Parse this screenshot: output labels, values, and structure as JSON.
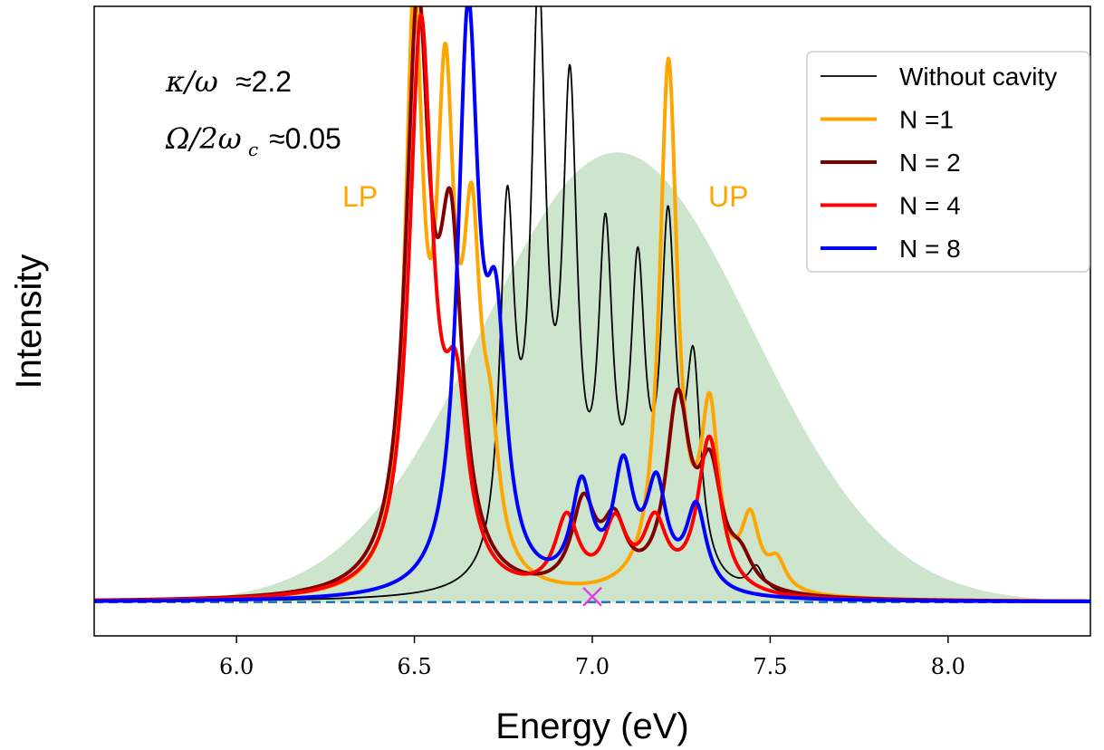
{
  "chart_data": {
    "type": "line",
    "title": "",
    "xlabel": "Energy (eV)",
    "ylabel": "Intensity",
    "xlim": [
      5.6,
      8.4
    ],
    "ylim": [
      -0.06,
      1.06
    ],
    "xticks": [
      6.0,
      6.5,
      7.0,
      7.5,
      8.0
    ],
    "xtick_labels": [
      "6.0",
      "6.5",
      "7.0",
      "7.5",
      "8.0"
    ],
    "grid": false,
    "legend_position": "top-right",
    "colors": {
      "without_cavity": "#000000",
      "n1": "#ffa500",
      "n2": "#800000",
      "n4": "#ff0000",
      "n8": "#0000ff",
      "envelope": "#cde4cd",
      "baseline": "#1f77b4",
      "marker": "#e040e0"
    },
    "annotations": {
      "kappa_symbol": "κ/ω",
      "kappa_value": "≈2.2",
      "omega_symbol": "Ω/2ω",
      "omega_subscript": "c",
      "omega_value": "≈0.05",
      "lp": "LP",
      "up": "UP"
    },
    "envelope": {
      "center": 7.07,
      "height": 0.8,
      "sigma": 0.38
    },
    "marker_point": {
      "x": 7.0,
      "y": 0.0
    },
    "series": [
      {
        "name": "Without cavity",
        "key": "without_cavity",
        "width": 0.025,
        "peaks": [
          [
            6.761,
            0.64
          ],
          [
            6.849,
            1.0
          ],
          [
            6.937,
            0.82
          ],
          [
            7.037,
            0.57
          ],
          [
            7.128,
            0.51
          ],
          [
            7.213,
            0.6
          ],
          [
            7.284,
            0.36
          ],
          [
            7.461,
            0.044
          ]
        ]
      },
      {
        "name": "N =1",
        "key": "n1",
        "width": 0.03,
        "peaks": [
          [
            6.499,
            1.0
          ],
          [
            6.587,
            0.8
          ],
          [
            6.661,
            0.55
          ],
          [
            6.714,
            0.19
          ],
          [
            7.214,
            0.94
          ],
          [
            7.33,
            0.3
          ],
          [
            7.444,
            0.12
          ],
          [
            7.519,
            0.05
          ]
        ]
      },
      {
        "name": "N = 2",
        "key": "n2",
        "width": 0.04,
        "peaks": [
          [
            6.509,
            1.0
          ],
          [
            6.602,
            0.57
          ],
          [
            6.975,
            0.15
          ],
          [
            7.062,
            0.11
          ],
          [
            7.24,
            0.33
          ],
          [
            7.331,
            0.2
          ],
          [
            7.417,
            0.05
          ]
        ]
      },
      {
        "name": "N = 4",
        "key": "n4",
        "width": 0.04,
        "peaks": [
          [
            6.518,
            1.0
          ],
          [
            6.617,
            0.3
          ],
          [
            6.928,
            0.13
          ],
          [
            7.064,
            0.12
          ],
          [
            7.176,
            0.12
          ],
          [
            7.329,
            0.28
          ]
        ]
      },
      {
        "name": "N = 8",
        "key": "n8",
        "width": 0.035,
        "peaks": [
          [
            6.651,
            1.0
          ],
          [
            6.729,
            0.41
          ],
          [
            6.97,
            0.18
          ],
          [
            7.087,
            0.21
          ],
          [
            7.18,
            0.18
          ],
          [
            7.292,
            0.15
          ]
        ]
      }
    ]
  }
}
